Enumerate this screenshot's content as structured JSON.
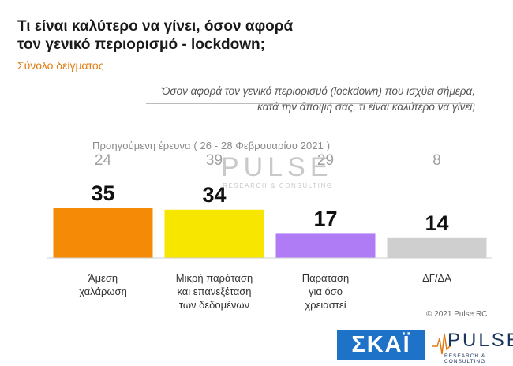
{
  "header": {
    "title_line1": "Τι είναι καλύτερο να γίνει, όσον αφορά",
    "title_line2": "τον γενικό περιορισμό - lockdown;",
    "subtitle": "Σύνολο δείγματος"
  },
  "question": {
    "line1": "Όσον αφορά τον γενικό περιορισμό (lockdown) που ισχύει σήμερα,",
    "line2": "κατά την άποψή σας, τι είναι καλύτερο να γίνει;"
  },
  "previous_survey_label": "Προηγούμενη έρευνα  ( 26 - 28 Φεβρουαρίου  2021 )",
  "watermark": {
    "name": "PULSE",
    "tagline": "RESEARCH & CONSULTING"
  },
  "chart_data": {
    "type": "bar",
    "categories": [
      [
        "Άμεση",
        "χαλάρωση"
      ],
      [
        "Μικρή παράταση",
        "και επανεξέταση",
        "των δεδομένων"
      ],
      [
        "Παράταση",
        "για όσο",
        "χρειαστεί"
      ],
      [
        "ΔΓ/ΔΑ"
      ]
    ],
    "values": [
      35,
      34,
      17,
      14
    ],
    "previous_values": [
      24,
      39,
      29,
      8
    ],
    "colors": [
      "#f58a07",
      "#f7e600",
      "#b07cf5",
      "#cfcfcf"
    ],
    "ylim": [
      0,
      40
    ]
  },
  "footer": {
    "copyright": "© 2021 Pulse RC",
    "logo_skai": "ΣΚΑΪ",
    "logo_pulse": "PULSE",
    "logo_pulse_sub": "RESEARCH & CONSULTING"
  }
}
